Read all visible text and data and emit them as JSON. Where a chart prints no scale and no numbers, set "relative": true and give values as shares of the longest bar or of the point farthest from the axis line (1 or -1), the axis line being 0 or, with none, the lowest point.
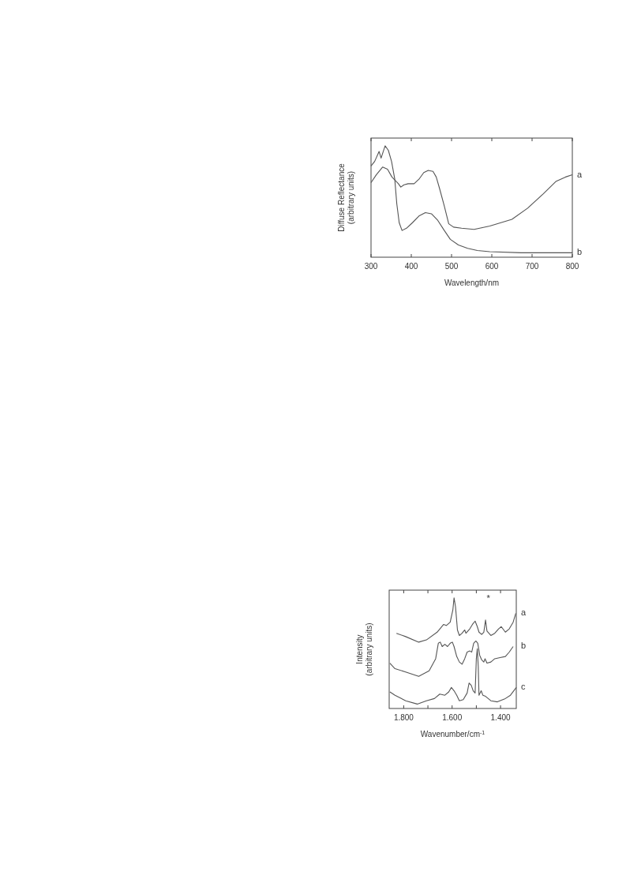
{
  "chart_data": [
    {
      "type": "line",
      "relative": true,
      "xlabel": "Wavelength/nm",
      "ylabel": "Diffuse Reflectance\n(arbitrary units)",
      "xlim": [
        300,
        800
      ],
      "xticks": [
        300,
        400,
        500,
        600,
        700,
        800
      ],
      "marker": "none",
      "line_style": "solid",
      "series": [
        {
          "name": "a",
          "color": "#555555",
          "x": [
            300,
            313,
            329,
            341,
            352,
            360,
            368,
            374,
            382,
            392,
            407,
            419,
            431,
            442,
            454,
            462,
            470,
            482,
            493,
            505,
            525,
            556,
            595,
            650,
            689,
            728,
            759,
            783,
            800
          ],
          "values": [
            0.67,
            0.74,
            0.81,
            0.79,
            0.72,
            0.69,
            0.66,
            0.63,
            0.65,
            0.66,
            0.66,
            0.7,
            0.76,
            0.78,
            0.77,
            0.72,
            0.62,
            0.46,
            0.3,
            0.27,
            0.26,
            0.25,
            0.28,
            0.34,
            0.44,
            0.57,
            0.68,
            0.72,
            0.74
          ]
        },
        {
          "name": "b",
          "color": "#555555",
          "x": [
            300,
            309,
            320,
            325,
            335,
            343,
            351,
            359,
            364,
            370,
            377,
            388,
            403,
            419,
            435,
            450,
            466,
            482,
            497,
            517,
            540,
            564,
            595,
            673,
            800
          ],
          "values": [
            0.82,
            0.86,
            0.95,
            0.89,
            1,
            0.96,
            0.86,
            0.7,
            0.48,
            0.31,
            0.24,
            0.26,
            0.31,
            0.37,
            0.4,
            0.39,
            0.33,
            0.24,
            0.16,
            0.11,
            0.08,
            0.06,
            0.05,
            0.04,
            0.04
          ]
        }
      ]
    },
    {
      "type": "line",
      "relative": true,
      "xlabel": "Wavenumber/cm$^{-1}$",
      "ylabel": "Intensity\n(arbitrary units)",
      "xlim": [
        1860,
        1335
      ],
      "xticks": [
        {
          "value": 1800,
          "label": "1.800"
        },
        {
          "value": 1700,
          "label": null
        },
        {
          "value": 1600,
          "label": "1.600"
        },
        {
          "value": 1500,
          "label": null
        },
        {
          "value": 1400,
          "label": "1.400"
        }
      ],
      "marker": "none",
      "line_style": "solid",
      "annotations": [
        "*"
      ],
      "series": [
        {
          "name": "a",
          "color": "#555555",
          "x": [
            1830,
            1792,
            1738,
            1706,
            1662,
            1635,
            1624,
            1608,
            1597,
            1592,
            1586,
            1578,
            1570,
            1559,
            1548,
            1543,
            1527,
            1516,
            1505,
            1496,
            1489,
            1478,
            1469,
            1462,
            1456,
            1440,
            1424,
            1408,
            1397,
            1380,
            1364,
            1348,
            1337
          ],
          "values": [
            0.68,
            0.65,
            0.6,
            0.62,
            0.69,
            0.76,
            0.75,
            0.78,
            0.89,
            1,
            0.92,
            0.71,
            0.66,
            0.68,
            0.71,
            0.68,
            0.72,
            0.76,
            0.79,
            0.74,
            0.69,
            0.67,
            0.69,
            0.8,
            0.7,
            0.66,
            0.68,
            0.72,
            0.74,
            0.69,
            0.72,
            0.78,
            0.86
          ]
        },
        {
          "name": "b",
          "color": "#555555",
          "x": [
            1857,
            1836,
            1792,
            1738,
            1695,
            1668,
            1657,
            1649,
            1641,
            1630,
            1619,
            1608,
            1599,
            1592,
            1581,
            1570,
            1559,
            1548,
            1538,
            1527,
            1519,
            1511,
            1502,
            1494,
            1486,
            1478,
            1469,
            1464,
            1456,
            1440,
            1424,
            1402,
            1380,
            1364,
            1348
          ],
          "values": [
            0.41,
            0.36,
            0.33,
            0.29,
            0.34,
            0.45,
            0.59,
            0.6,
            0.56,
            0.58,
            0.56,
            0.59,
            0.6,
            0.56,
            0.47,
            0.42,
            0.4,
            0.45,
            0.51,
            0.52,
            0.51,
            0.59,
            0.61,
            0.59,
            0.48,
            0.44,
            0.42,
            0.45,
            0.41,
            0.42,
            0.45,
            0.46,
            0.47,
            0.51,
            0.56
          ]
        },
        {
          "name": "c",
          "color": "#555555",
          "x": [
            1857,
            1836,
            1792,
            1744,
            1706,
            1673,
            1651,
            1630,
            1614,
            1603,
            1592,
            1581,
            1570,
            1554,
            1538,
            1530,
            1521,
            1513,
            1505,
            1500,
            1496,
            1492,
            1489,
            1480,
            1473,
            1462,
            1440,
            1413,
            1380,
            1359,
            1335
          ],
          "values": [
            0.15,
            0.12,
            0.07,
            0.04,
            0.07,
            0.09,
            0.13,
            0.12,
            0.15,
            0.19,
            0.16,
            0.12,
            0.07,
            0.08,
            0.14,
            0.23,
            0.21,
            0.16,
            0.14,
            0.45,
            0.54,
            0.38,
            0.12,
            0.16,
            0.12,
            0.11,
            0.07,
            0.06,
            0.09,
            0.12,
            0.19
          ]
        }
      ]
    }
  ]
}
